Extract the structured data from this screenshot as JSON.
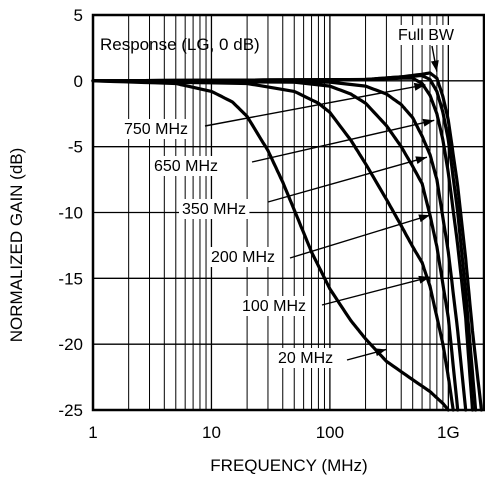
{
  "chart_data": {
    "type": "line",
    "xlabel": "FREQUENCY (MHz)",
    "ylabel": "NORMALIZED GAIN (dB)",
    "x_scale": "log",
    "xlim": [
      1,
      2000
    ],
    "ylim": [
      -25,
      5
    ],
    "x_ticks": [
      1,
      10,
      100,
      1000
    ],
    "x_tick_labels": [
      "1",
      "10",
      "100",
      "1G"
    ],
    "y_ticks": [
      5,
      0,
      -5,
      -10,
      -15,
      -20,
      -25
    ],
    "y_tick_labels": [
      "5",
      "0",
      "-5",
      "-10",
      "-15",
      "-20",
      "-25"
    ],
    "grid": true,
    "title_annotation": "Response (LG, 0 dB)",
    "series": [
      {
        "name": "20 MHz",
        "points": [
          [
            1,
            0
          ],
          [
            5,
            -0.2
          ],
          [
            10,
            -0.8
          ],
          [
            15,
            -1.6
          ],
          [
            20,
            -2.7
          ],
          [
            30,
            -5.3
          ],
          [
            40,
            -7.7
          ],
          [
            50,
            -9.8
          ],
          [
            70,
            -13.0
          ],
          [
            100,
            -15.8
          ],
          [
            150,
            -18.2
          ],
          [
            200,
            -19.6
          ],
          [
            300,
            -21.3
          ],
          [
            500,
            -22.7
          ],
          [
            700,
            -23.6
          ],
          [
            900,
            -24.5
          ],
          [
            1000,
            -25
          ]
        ]
      },
      {
        "name": "100 MHz",
        "points": [
          [
            1,
            0
          ],
          [
            20,
            -0.2
          ],
          [
            50,
            -0.8
          ],
          [
            80,
            -1.7
          ],
          [
            100,
            -2.4
          ],
          [
            150,
            -4.5
          ],
          [
            200,
            -6.3
          ],
          [
            300,
            -9.0
          ],
          [
            400,
            -11.0
          ],
          [
            500,
            -12.6
          ],
          [
            600,
            -13.8
          ],
          [
            700,
            -15.6
          ],
          [
            900,
            -20
          ],
          [
            1000,
            -22.5
          ],
          [
            1100,
            -25
          ]
        ]
      },
      {
        "name": "200 MHz",
        "points": [
          [
            1,
            0
          ],
          [
            50,
            -0.1
          ],
          [
            100,
            -0.4
          ],
          [
            150,
            -1.0
          ],
          [
            200,
            -1.7
          ],
          [
            300,
            -3.4
          ],
          [
            400,
            -5.0
          ],
          [
            500,
            -6.5
          ],
          [
            600,
            -7.8
          ],
          [
            700,
            -10.2
          ],
          [
            800,
            -12.6
          ],
          [
            1000,
            -18
          ],
          [
            1200,
            -25
          ]
        ]
      },
      {
        "name": "350 MHz",
        "points": [
          [
            1,
            0
          ],
          [
            100,
            -0.1
          ],
          [
            200,
            -0.4
          ],
          [
            300,
            -1.0
          ],
          [
            400,
            -1.8
          ],
          [
            500,
            -2.8
          ],
          [
            600,
            -4.2
          ],
          [
            700,
            -5.6
          ],
          [
            800,
            -7.5
          ],
          [
            1000,
            -13
          ],
          [
            1200,
            -19
          ],
          [
            1400,
            -25
          ]
        ]
      },
      {
        "name": "650 MHz",
        "points": [
          [
            1,
            0
          ],
          [
            200,
            0.1
          ],
          [
            400,
            0.2
          ],
          [
            500,
            0.2
          ],
          [
            600,
            -0.2
          ],
          [
            700,
            -1.1
          ],
          [
            800,
            -2.5
          ],
          [
            900,
            -4.5
          ],
          [
            1000,
            -7
          ],
          [
            1200,
            -12.5
          ],
          [
            1400,
            -18
          ],
          [
            1600,
            -25
          ]
        ]
      },
      {
        "name": "750 MHz",
        "points": [
          [
            1,
            0
          ],
          [
            200,
            0.1
          ],
          [
            400,
            0.3
          ],
          [
            600,
            0.4
          ],
          [
            700,
            0.1
          ],
          [
            800,
            -0.8
          ],
          [
            900,
            -2.4
          ],
          [
            1000,
            -4.5
          ],
          [
            1200,
            -10
          ],
          [
            1400,
            -16
          ],
          [
            1700,
            -25
          ]
        ]
      },
      {
        "name": "Full BW",
        "points": [
          [
            1,
            0
          ],
          [
            200,
            0.1
          ],
          [
            400,
            0.3
          ],
          [
            600,
            0.5
          ],
          [
            700,
            0.6
          ],
          [
            800,
            0.2
          ],
          [
            900,
            -1.2
          ],
          [
            1000,
            -3
          ],
          [
            1200,
            -8
          ],
          [
            1400,
            -13.5
          ],
          [
            1600,
            -19
          ],
          [
            1900,
            -25
          ]
        ]
      }
    ],
    "annotations": [
      {
        "text": "Full BW",
        "arrow_to": [
          800,
          0.7
        ]
      },
      {
        "text": "750 MHz",
        "arrow_to": [
          640,
          -0.3
        ]
      },
      {
        "text": "650 MHz",
        "arrow_to": [
          760,
          -3
        ]
      },
      {
        "text": "350 MHz",
        "arrow_to": [
          660,
          -5.8
        ]
      },
      {
        "text": "200 MHz",
        "arrow_to": [
          700,
          -10.2
        ]
      },
      {
        "text": "100 MHz",
        "arrow_to": [
          700,
          -14.9
        ]
      },
      {
        "text": "20 MHz",
        "arrow_to": [
          300,
          -20.4
        ]
      }
    ]
  }
}
